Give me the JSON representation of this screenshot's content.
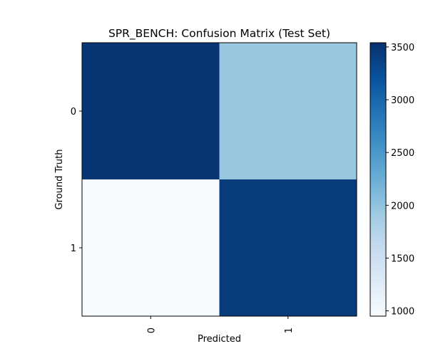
{
  "chart_data": {
    "type": "heatmap",
    "title": "SPR_BENCH: Confusion Matrix (Test Set)",
    "xlabel": "Predicted",
    "ylabel": "Ground Truth",
    "x_categories": [
      "0",
      "1"
    ],
    "y_categories": [
      "0",
      "1"
    ],
    "values": [
      [
        3480,
        1960
      ],
      [
        960,
        3420
      ]
    ],
    "colormap": "Blues",
    "colorbar": {
      "range": [
        950,
        3540
      ],
      "ticks": [
        "1000",
        "1500",
        "2000",
        "2500",
        "3000",
        "3500"
      ],
      "tick_values": [
        1000,
        1500,
        2000,
        2500,
        3000,
        3500
      ]
    },
    "annotations": false,
    "grid": false
  }
}
